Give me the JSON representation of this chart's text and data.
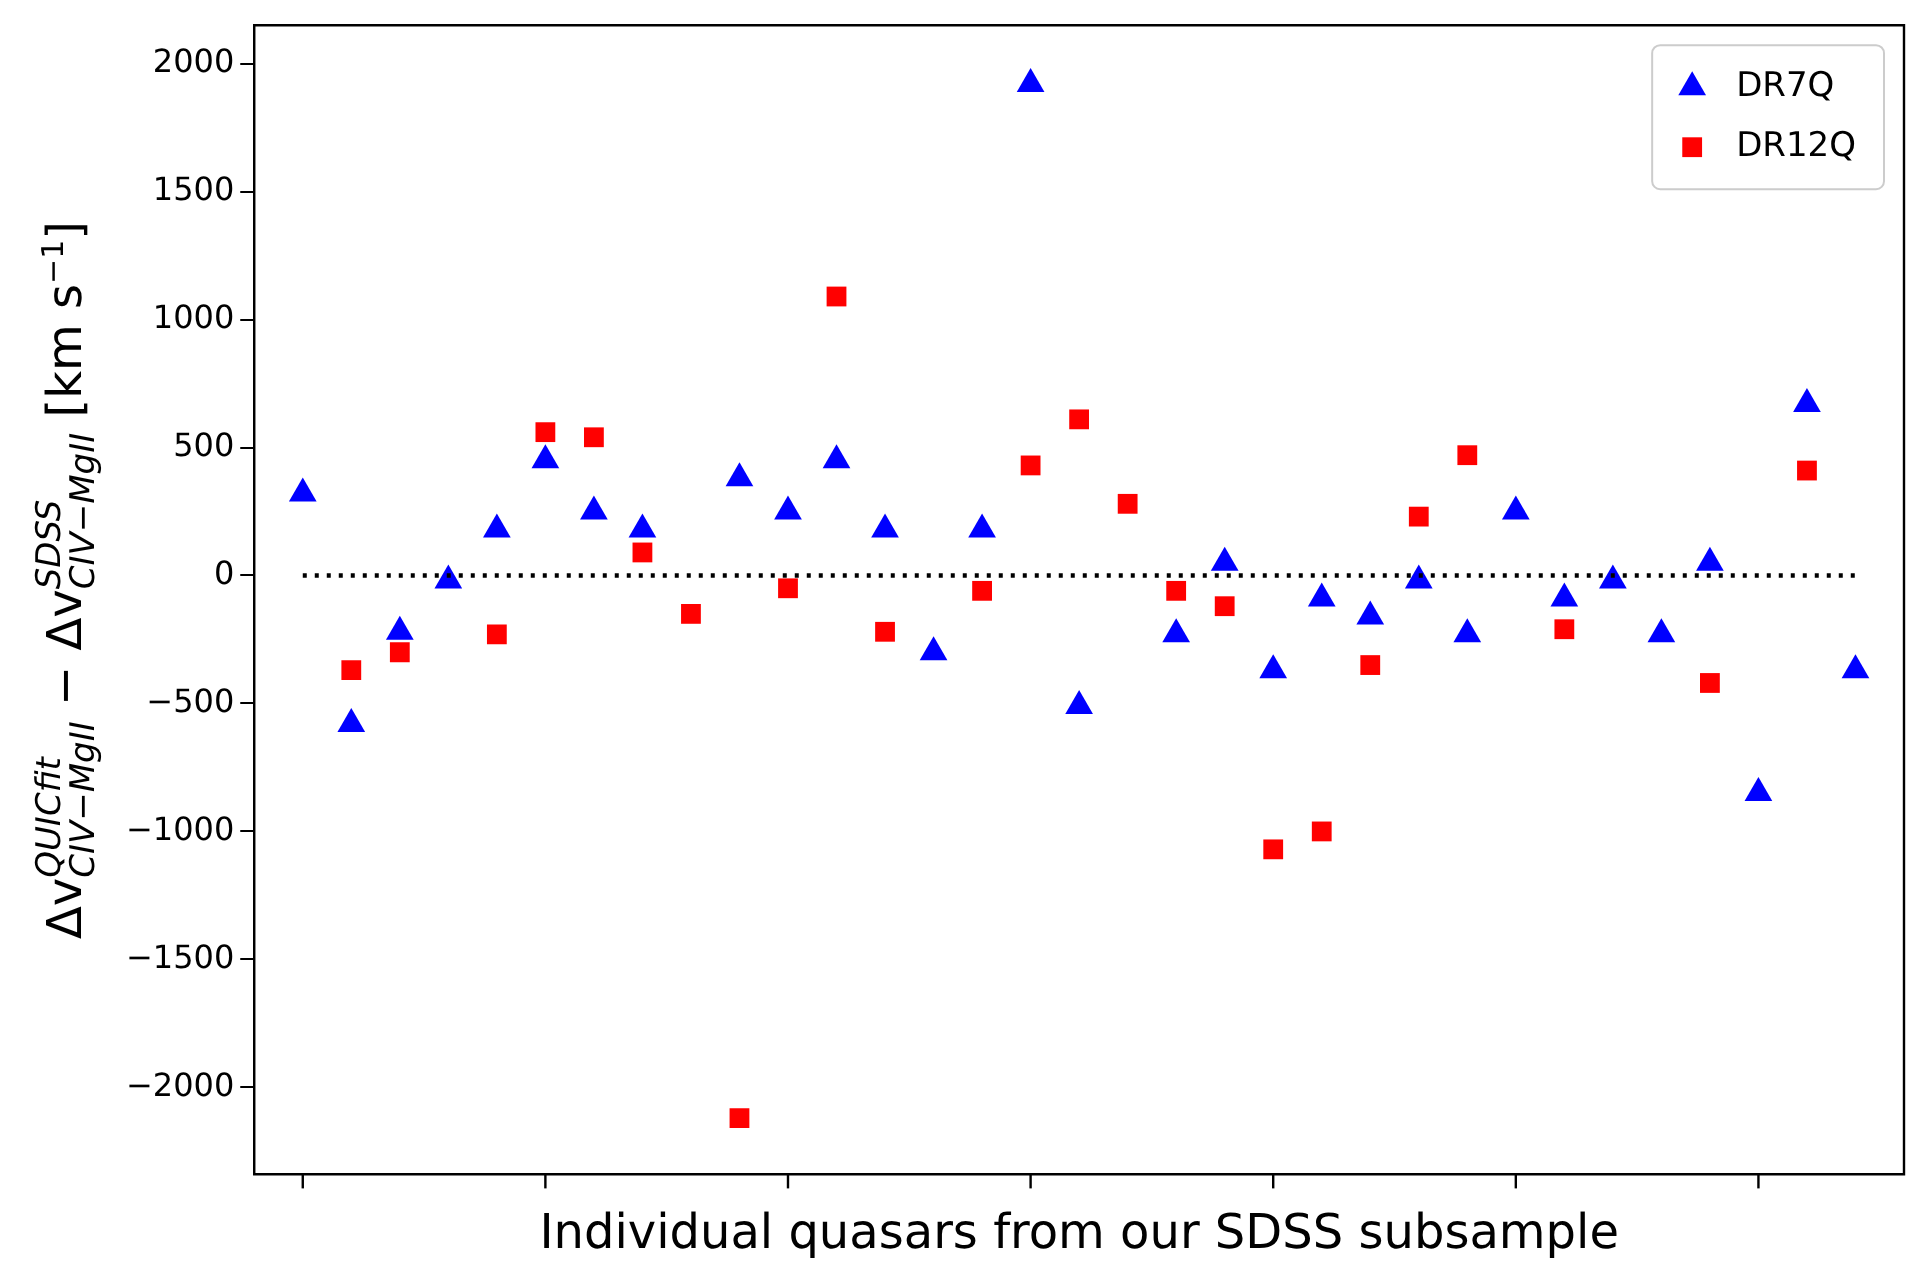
{
  "chart_data": {
    "type": "scatter",
    "xlabel": "Individual quasars from our SDSS subsample",
    "ylabel": "Δv$_{CIV−MgII}$$^{QUICfit}$ − Δv$_{CIV−MgII}$$^{SDSS}$ [km s$^{−1}$]",
    "categories": [
      null,
      null,
      null,
      null,
      null,
      null,
      null,
      null,
      null,
      null,
      null,
      null,
      null,
      null,
      null,
      null,
      null,
      null,
      null,
      null,
      null,
      null,
      null,
      null,
      null,
      null,
      null,
      null,
      null,
      null,
      null,
      null,
      null
    ],
    "ylim": [
      -2340,
      2150
    ],
    "yticks": [
      {
        "value": -2000,
        "label": "−2000"
      },
      {
        "value": -1500,
        "label": "−1500"
      },
      {
        "value": -1000,
        "label": "−1000"
      },
      {
        "value": -500,
        "label": "−500"
      },
      0,
      500,
      1000,
      1500,
      2000
    ],
    "grid": false,
    "legend": "top right",
    "ref_lines": [
      {
        "axis": "y",
        "value": 0,
        "color": "#000000",
        "line_style": "dotted"
      }
    ],
    "series": [
      {
        "name": "DR7Q",
        "color": "#0000ff",
        "marker": "triangle",
        "values": [
          320,
          -580,
          -220,
          -20,
          180,
          450,
          250,
          180,
          null,
          380,
          250,
          450,
          180,
          -300,
          180,
          1920,
          -510,
          null,
          -230,
          50,
          -370,
          -90,
          -160,
          -20,
          -230,
          250,
          -90,
          -20,
          -230,
          50,
          -850,
          670,
          -370
        ]
      },
      {
        "name": "DR12Q",
        "color": "#ff0000",
        "marker": "square",
        "values": [
          null,
          -370,
          -300,
          null,
          -230,
          560,
          540,
          90,
          -150,
          -2120,
          -50,
          1090,
          -220,
          null,
          -60,
          430,
          610,
          280,
          -60,
          -120,
          -1070,
          -1000,
          -350,
          230,
          470,
          null,
          -210,
          null,
          null,
          -420,
          null,
          410,
          null
        ]
      }
    ]
  }
}
